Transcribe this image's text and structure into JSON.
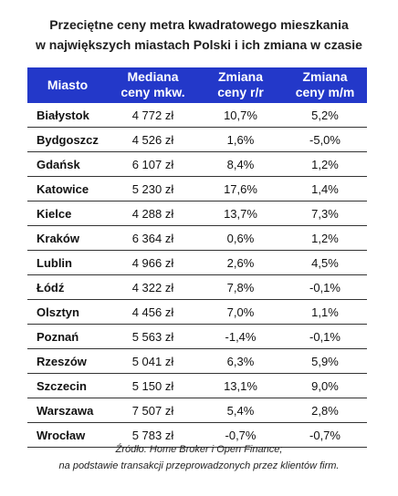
{
  "title": {
    "line1": "Przeciętne ceny metra kwadratowego mieszkania",
    "line2": "w największych miastach Polski i ich zmiana w czasie"
  },
  "table": {
    "columns": [
      {
        "line1": "Miasto",
        "line2": ""
      },
      {
        "line1": "Mediana",
        "line2": "ceny mkw."
      },
      {
        "line1": "Zmiana",
        "line2": "ceny r/r"
      },
      {
        "line1": "Zmiana",
        "line2": "ceny m/m"
      }
    ],
    "rows": [
      {
        "city": "Białystok",
        "median": "4 772 zł",
        "yoy": "10,7%",
        "mom": "5,2%"
      },
      {
        "city": "Bydgoszcz",
        "median": "4 526 zł",
        "yoy": "1,6%",
        "mom": "-5,0%"
      },
      {
        "city": "Gdańsk",
        "median": "6 107 zł",
        "yoy": "8,4%",
        "mom": "1,2%"
      },
      {
        "city": "Katowice",
        "median": "5 230 zł",
        "yoy": "17,6%",
        "mom": "1,4%"
      },
      {
        "city": "Kielce",
        "median": "4 288 zł",
        "yoy": "13,7%",
        "mom": "7,3%"
      },
      {
        "city": "Kraków",
        "median": "6 364 zł",
        "yoy": "0,6%",
        "mom": "1,2%"
      },
      {
        "city": "Lublin",
        "median": "4 966 zł",
        "yoy": "2,6%",
        "mom": "4,5%"
      },
      {
        "city": "Łódź",
        "median": "4 322 zł",
        "yoy": "7,8%",
        "mom": "-0,1%"
      },
      {
        "city": "Olsztyn",
        "median": "4 456 zł",
        "yoy": "7,0%",
        "mom": "1,1%"
      },
      {
        "city": "Poznań",
        "median": "5 563 zł",
        "yoy": "-1,4%",
        "mom": "-0,1%"
      },
      {
        "city": "Rzeszów",
        "median": "5 041 zł",
        "yoy": "6,3%",
        "mom": "5,9%"
      },
      {
        "city": "Szczecin",
        "median": "5 150 zł",
        "yoy": "13,1%",
        "mom": "9,0%"
      },
      {
        "city": "Warszawa",
        "median": "7 507 zł",
        "yoy": "5,4%",
        "mom": "2,8%"
      },
      {
        "city": "Wrocław",
        "median": "5 783 zł",
        "yoy": "-0,7%",
        "mom": "-0,7%"
      }
    ]
  },
  "source": {
    "line1": "Źródło: Home Broker i Open Finance;",
    "line2": "na podstawie transakcji przeprowadzonych przez klientów firm."
  },
  "colors": {
    "header_background": "#2338c9",
    "header_text": "#ffffff"
  }
}
